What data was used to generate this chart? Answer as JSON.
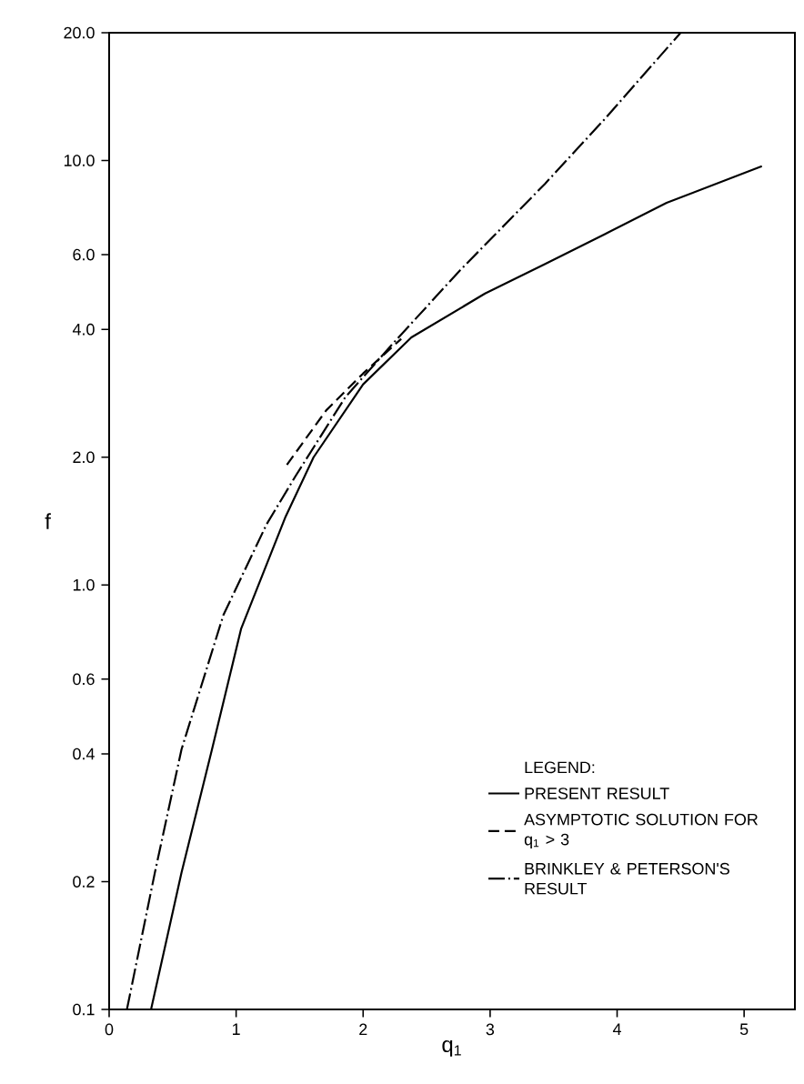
{
  "chart_data": {
    "type": "line",
    "xlabel": "q$_{1}$",
    "ylabel": "f",
    "legend_title": "LEGEND:",
    "log": "y",
    "xlim": [
      0,
      5.4
    ],
    "ylim": [
      0.1,
      20
    ],
    "xticks": [
      0,
      1,
      2,
      3,
      4,
      5
    ],
    "yticks": [
      0.1,
      0.2,
      0.4,
      0.6,
      {
        "value": 1,
        "label": "1.0"
      },
      {
        "value": 2,
        "label": "2.0"
      },
      {
        "value": 4,
        "label": "4.0"
      },
      {
        "value": 6,
        "label": "6.0"
      },
      {
        "value": 10,
        "label": "10.0"
      },
      {
        "value": 20,
        "label": "20.0"
      }
    ],
    "grid": false,
    "legend": "bottom right",
    "series": [
      {
        "name": "PRESENT RESULT",
        "color": "#000000",
        "line_style": "solid",
        "x": [
          0.33,
          0.57,
          0.81,
          1.04,
          1.39,
          1.61,
          2.0,
          2.38,
          2.96,
          3.43,
          3.9,
          4.39,
          5.14
        ],
        "values": [
          0.1,
          0.21,
          0.41,
          0.79,
          1.45,
          2.0,
          2.97,
          3.83,
          4.86,
          5.7,
          6.7,
          7.95,
          9.7
        ]
      },
      {
        "name": "ASYMPTOTIC SOLUTION FOR q$_{1}$ > 3",
        "color": "#000000",
        "line_style": "dashed",
        "x": [
          1.4,
          1.71,
          2.0,
          2.3
        ],
        "values": [
          1.92,
          2.58,
          3.15,
          3.8
        ]
      },
      {
        "name": "BRINKLEY & PETERSON'S RESULT",
        "color": "#000000",
        "line_style": "dashdot",
        "x": [
          0.14,
          0.36,
          0.57,
          0.9,
          1.24,
          1.47,
          1.86,
          2.24,
          2.76,
          3.43,
          3.9,
          4.5
        ],
        "values": [
          0.1,
          0.21,
          0.41,
          0.85,
          1.39,
          1.81,
          2.77,
          3.72,
          5.5,
          8.8,
          12.5,
          20
        ]
      }
    ]
  }
}
